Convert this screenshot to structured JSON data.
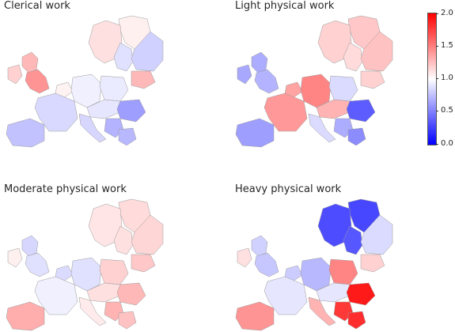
{
  "panels": [
    {
      "title": "Clerical work",
      "regions": {
        "scand_n": 1.06,
        "scand_w": 1.12,
        "scand_e": 0.88,
        "finland": 0.82,
        "baltic": 1.28,
        "poland": 0.92,
        "germany": 0.94,
        "benelux": 1.05,
        "france": 0.85,
        "uk_n": 1.28,
        "uk_s": 1.42,
        "ireland": 1.18,
        "iberia": 0.76,
        "italy": 0.84,
        "central": 0.9,
        "romania": 0.62,
        "balkans": 0.7,
        "greece": 0.72
      }
    },
    {
      "title": "Light physical work",
      "regions": {
        "scand_n": 1.22,
        "scand_w": 1.18,
        "scand_e": 1.14,
        "finland": 1.24,
        "baltic": 1.18,
        "poland": 0.86,
        "germany": 1.48,
        "benelux": 1.36,
        "france": 1.4,
        "uk_n": 0.68,
        "uk_s": 0.7,
        "ireland": 0.66,
        "iberia": 0.62,
        "italy": 0.86,
        "central": 1.3,
        "romania": 0.36,
        "balkans": 0.68,
        "greece": 0.55
      }
    },
    {
      "title": "Moderate physical work",
      "regions": {
        "scand_n": 1.14,
        "scand_w": 1.1,
        "scand_e": 1.12,
        "finland": 1.16,
        "baltic": 1.22,
        "poland": 1.18,
        "germany": 0.88,
        "benelux": 0.86,
        "france": 0.94,
        "uk_n": 0.84,
        "uk_s": 0.88,
        "ireland": 1.06,
        "iberia": 1.32,
        "italy": 1.08,
        "central": 1.12,
        "romania": 1.28,
        "balkans": 1.3,
        "greece": 1.24
      }
    },
    {
      "title": "Heavy physical work",
      "regions": {
        "scand_n": 0.28,
        "scand_w": 0.3,
        "scand_e": 0.34,
        "finland": 0.86,
        "baltic": 1.18,
        "poland": 1.48,
        "germany": 0.72,
        "benelux": 0.8,
        "france": 0.9,
        "uk_n": 0.82,
        "uk_s": 0.78,
        "ireland": 1.12,
        "iberia": 1.42,
        "italy": 1.3,
        "central": 0.9,
        "romania": 1.9,
        "balkans": 1.78,
        "greece": 1.82
      }
    }
  ],
  "colorbar": {
    "min": 0.0,
    "max": 2.0,
    "colors": {
      "low": "#0000ff",
      "mid": "#ffffff",
      "high": "#ff0000"
    },
    "ticks": [
      "0.0",
      "0.5",
      "1.0",
      "1.5",
      "2.0"
    ]
  }
}
